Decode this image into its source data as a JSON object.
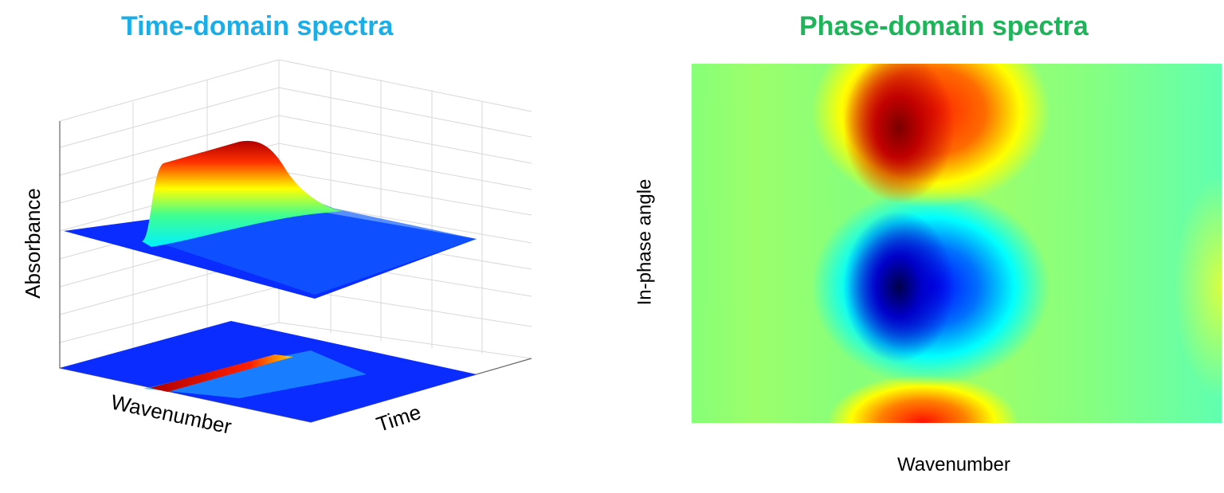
{
  "left_panel": {
    "title": "Time-domain spectra",
    "title_color": "#1aaee8",
    "z_label": "Absorbance",
    "x_label": "Wavenumber",
    "y_label": "Time",
    "colormap": "jet"
  },
  "right_panel": {
    "title": "Phase-domain spectra",
    "title_color": "#1db45a",
    "y_label": "In-phase angle",
    "x_label": "Wavenumber",
    "colormap": "jet"
  }
}
